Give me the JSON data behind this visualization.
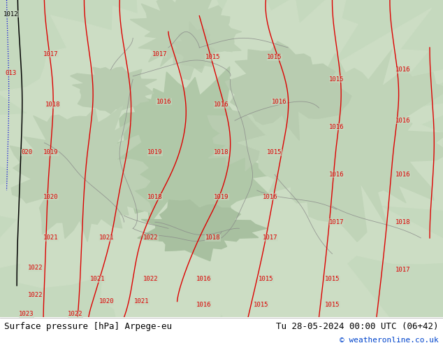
{
  "title_left": "Surface pressure [hPa] Arpege-eu",
  "title_right": "Tu 28-05-2024 00:00 UTC (06+42)",
  "credit": "© weatheronline.co.uk",
  "fig_width": 6.34,
  "fig_height": 4.9,
  "dpi": 100,
  "map_bg_light": "#c8d8c0",
  "map_bg_dark": "#a8c8a0",
  "footer_bg": "#ffffff",
  "title_fontsize": 9,
  "credit_fontsize": 8,
  "credit_color": "#0044cc",
  "isobar_red": "#dd0000",
  "isobar_black": "#000000",
  "isobar_blue": "#0000dd",
  "border_color": "#888888",
  "label_fontsize": 6.5
}
